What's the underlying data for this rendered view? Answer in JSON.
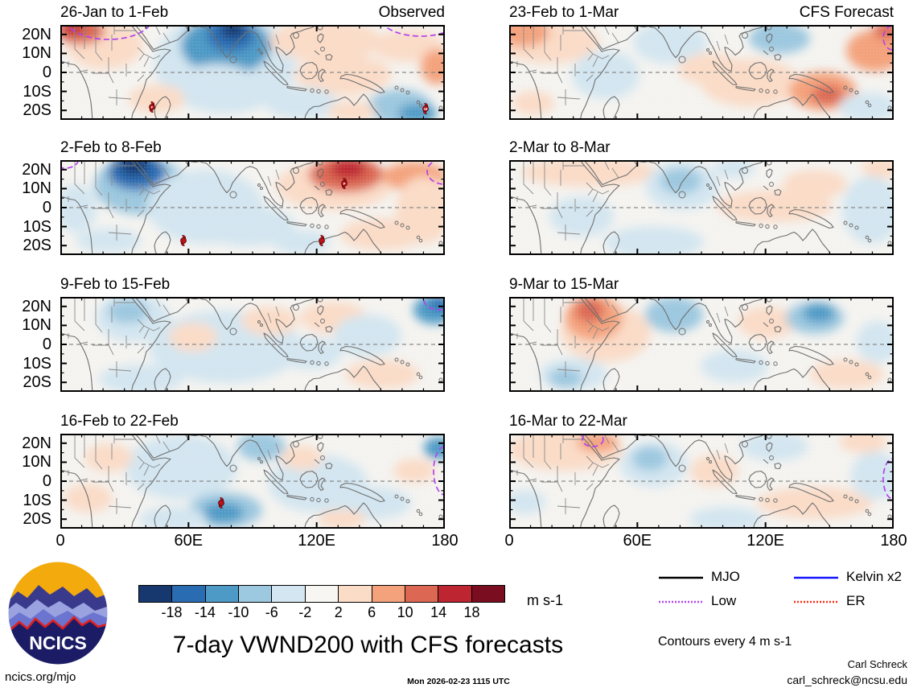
{
  "logo": {
    "text": "NCICS"
  },
  "footer": {
    "site": "ncics.org/mjo",
    "timestamp": "Mon 2026-02-23 1115 UTC",
    "credit": "Carl Schreck",
    "email": "carl_schreck@ncsu.edu"
  },
  "chart_data": {
    "type": "heatmap",
    "title": "7-day VWND200 with CFS forecasts",
    "note": "Contours every 4 m s-1",
    "x_axis": {
      "ticks": [
        "0",
        "60E",
        "120E",
        "180"
      ],
      "range_deg": [
        0,
        180
      ]
    },
    "y_axis": {
      "ticks": [
        "20N",
        "10N",
        "0",
        "10S",
        "20S"
      ],
      "range_deg": [
        25,
        -25
      ]
    },
    "colorbar": {
      "unit": "m s-1",
      "values": [
        "-18",
        "-14",
        "-10",
        "-6",
        "-2",
        "2",
        "6",
        "10",
        "14",
        "18"
      ],
      "colors": [
        "#16386f",
        "#2a6cb2",
        "#4e9ac6",
        "#9cc8e0",
        "#d3e6f1",
        "#f7f6f3",
        "#fbdcc7",
        "#f4a27c",
        "#dc6753",
        "#bd2530",
        "#7a0d1f"
      ]
    },
    "legend": [
      {
        "label": "MJO",
        "color": "#000000",
        "dash": ""
      },
      {
        "label": "Low",
        "color": "#b243ee",
        "dash": "2 2"
      },
      {
        "label": "Kelvin x2",
        "color": "#1414ff",
        "dash": ""
      },
      {
        "label": "ER",
        "color": "#ff2d16",
        "dash": "2 2"
      }
    ],
    "panels": [
      {
        "title": "26-Jan to 1-Feb",
        "corner": "Observed",
        "col": 0,
        "row": 0,
        "anomaly_blobs_est": [
          [
            55,
            25,
            48,
            30,
            6
          ],
          [
            25,
            8,
            30,
            16,
            8
          ],
          [
            16,
            4,
            13,
            9,
            9
          ],
          [
            205,
            48,
            88,
            62,
            4
          ],
          [
            206,
            26,
            56,
            36,
            2
          ],
          [
            212,
            13,
            30,
            20,
            1
          ],
          [
            215,
            6,
            16,
            11,
            0
          ],
          [
            195,
            78,
            52,
            30,
            4
          ],
          [
            120,
            92,
            35,
            18,
            6
          ],
          [
            330,
            20,
            70,
            25,
            6
          ],
          [
            432,
            26,
            45,
            20,
            6
          ],
          [
            352,
            62,
            60,
            25,
            6
          ],
          [
            468,
            52,
            20,
            22,
            7
          ],
          [
            300,
            97,
            45,
            20,
            4
          ],
          [
            422,
            102,
            40,
            22,
            3
          ],
          [
            444,
            110,
            24,
            12,
            2
          ],
          [
            362,
            107,
            30,
            12,
            6
          ]
        ],
        "low_contours": [
          [
            60,
            -10,
            55,
            28
          ],
          [
            448,
            -12,
            52,
            26
          ]
        ],
        "cyclones": [
          [
            114,
            102,
            "F"
          ],
          [
            454,
            104,
            "18"
          ]
        ]
      },
      {
        "title": "2-Feb to 8-Feb",
        "corner": "",
        "col": 0,
        "row": 1,
        "anomaly_blobs_est": [
          [
            100,
            32,
            58,
            36,
            3
          ],
          [
            95,
            15,
            36,
            22,
            1
          ],
          [
            92,
            7,
            18,
            12,
            0
          ],
          [
            180,
            58,
            72,
            46,
            4
          ],
          [
            232,
            82,
            60,
            25,
            4
          ],
          [
            340,
            32,
            72,
            30,
            6
          ],
          [
            355,
            18,
            46,
            22,
            8
          ],
          [
            358,
            11,
            22,
            12,
            9
          ],
          [
            440,
            20,
            40,
            18,
            7
          ],
          [
            452,
            62,
            35,
            42,
            6
          ],
          [
            400,
            92,
            52,
            20,
            6
          ],
          [
            300,
            102,
            36,
            15,
            4
          ],
          [
            60,
            100,
            40,
            15,
            4
          ],
          [
            20,
            60,
            25,
            30,
            4
          ]
        ],
        "low_contours": [
          [
            6,
            0,
            16,
            10
          ],
          [
            478,
            14,
            22,
            16
          ]
        ],
        "cyclones": [
          [
            353,
            29,
            "P"
          ],
          [
            153,
            100,
            ""
          ],
          [
            325,
            100,
            ""
          ]
        ]
      },
      {
        "title": "9-Feb to 15-Feb",
        "corner": "",
        "col": 0,
        "row": 2,
        "anomaly_blobs_est": [
          [
            90,
            26,
            46,
            30,
            4
          ],
          [
            84,
            18,
            25,
            15,
            3
          ],
          [
            205,
            62,
            95,
            45,
            4
          ],
          [
            165,
            50,
            30,
            18,
            6
          ],
          [
            340,
            26,
            42,
            20,
            6
          ],
          [
            382,
            48,
            42,
            26,
            4
          ],
          [
            465,
            16,
            26,
            18,
            2
          ],
          [
            472,
            8,
            13,
            9,
            1
          ],
          [
            400,
            96,
            46,
            18,
            6
          ],
          [
            100,
            102,
            52,
            18,
            4
          ],
          [
            260,
            30,
            35,
            18,
            6
          ],
          [
            310,
            70,
            40,
            20,
            4
          ]
        ],
        "low_contours": [
          [
            472,
            4,
            20,
            12
          ]
        ],
        "cyclones": []
      },
      {
        "title": "16-Feb to 22-Feb",
        "corner": "",
        "col": 0,
        "row": 3,
        "anomaly_blobs_est": [
          [
            150,
            42,
            70,
            40,
            4
          ],
          [
            320,
            62,
            62,
            36,
            4
          ],
          [
            205,
            95,
            46,
            22,
            3
          ],
          [
            202,
            98,
            26,
            13,
            2
          ],
          [
            250,
            16,
            30,
            18,
            3
          ],
          [
            390,
            86,
            46,
            20,
            4
          ],
          [
            470,
            18,
            18,
            14,
            2
          ],
          [
            60,
            30,
            30,
            18,
            6
          ],
          [
            300,
            30,
            26,
            15,
            6
          ],
          [
            440,
            46,
            26,
            15,
            6
          ],
          [
            350,
            106,
            30,
            12,
            6
          ],
          [
            140,
            106,
            42,
            15,
            4
          ],
          [
            35,
            80,
            30,
            18,
            6
          ]
        ],
        "low_contours": [
          [
            478,
            46,
            14,
            30
          ]
        ],
        "cyclones": [
          [
            200,
            86,
            ""
          ]
        ]
      },
      {
        "title": "23-Feb to 1-Mar",
        "corner": "CFS Forecast",
        "col": 1,
        "row": 0,
        "anomaly_blobs_est": [
          [
            50,
            22,
            62,
            26,
            6
          ],
          [
            18,
            9,
            32,
            18,
            7
          ],
          [
            200,
            22,
            46,
            26,
            4
          ],
          [
            332,
            9,
            26,
            13,
            2
          ],
          [
            336,
            17,
            38,
            19,
            3
          ],
          [
            300,
            72,
            62,
            30,
            6
          ],
          [
            390,
            82,
            42,
            24,
            7
          ],
          [
            396,
            87,
            20,
            12,
            8
          ],
          [
            455,
            32,
            36,
            26,
            7
          ],
          [
            470,
            7,
            18,
            10,
            8
          ],
          [
            446,
            102,
            36,
            18,
            4
          ],
          [
            120,
            62,
            42,
            30,
            4
          ],
          [
            30,
            97,
            26,
            15,
            6
          ],
          [
            250,
            55,
            40,
            20,
            6
          ]
        ],
        "low_contours": [
          [
            477,
            16,
            12,
            15
          ]
        ],
        "cyclones": []
      },
      {
        "title": "2-Mar to 8-Mar",
        "corner": "",
        "col": 1,
        "row": 1,
        "anomaly_blobs_est": [
          [
            100,
            15,
            85,
            18,
            6
          ],
          [
            215,
            32,
            46,
            30,
            4
          ],
          [
            213,
            26,
            26,
            16,
            3
          ],
          [
            330,
            57,
            72,
            20,
            6
          ],
          [
            180,
            102,
            62,
            20,
            4
          ],
          [
            450,
            62,
            36,
            42,
            4
          ],
          [
            464,
            10,
            26,
            12,
            6
          ],
          [
            280,
            10,
            26,
            12,
            4
          ],
          [
            380,
            30,
            40,
            18,
            6
          ],
          [
            90,
            70,
            40,
            25,
            4
          ]
        ],
        "low_contours": [],
        "cyclones": []
      },
      {
        "title": "9-Mar to 15-Mar",
        "corner": "",
        "col": 1,
        "row": 2,
        "anomaly_blobs_est": [
          [
            120,
            45,
            56,
            36,
            6
          ],
          [
            105,
            26,
            36,
            28,
            7
          ],
          [
            100,
            17,
            18,
            15,
            8
          ],
          [
            205,
            22,
            36,
            22,
            3
          ],
          [
            80,
            96,
            42,
            20,
            4
          ],
          [
            70,
            101,
            21,
            12,
            3
          ],
          [
            320,
            32,
            36,
            20,
            6
          ],
          [
            380,
            26,
            36,
            20,
            3
          ],
          [
            385,
            20,
            20,
            12,
            2
          ],
          [
            420,
            96,
            46,
            18,
            6
          ],
          [
            458,
            56,
            26,
            26,
            4
          ],
          [
            280,
            86,
            42,
            20,
            4
          ]
        ],
        "low_contours": [],
        "cyclones": []
      },
      {
        "title": "16-Mar to 22-Mar",
        "corner": "",
        "col": 1,
        "row": 3,
        "anomaly_blobs_est": [
          [
            70,
            20,
            72,
            26,
            6
          ],
          [
            110,
            11,
            26,
            12,
            7
          ],
          [
            180,
            38,
            42,
            28,
            4
          ],
          [
            175,
            31,
            22,
            15,
            3
          ],
          [
            255,
            46,
            30,
            20,
            6
          ],
          [
            330,
            16,
            42,
            18,
            4
          ],
          [
            380,
            86,
            72,
            20,
            6
          ],
          [
            270,
            106,
            46,
            15,
            4
          ],
          [
            455,
            52,
            30,
            30,
            4
          ],
          [
            440,
            10,
            30,
            14,
            6
          ],
          [
            20,
            85,
            25,
            15,
            4
          ]
        ],
        "low_contours": [
          [
            104,
            7,
            13,
            9
          ],
          [
            477,
            56,
            12,
            25
          ]
        ],
        "cyclones": []
      }
    ]
  }
}
